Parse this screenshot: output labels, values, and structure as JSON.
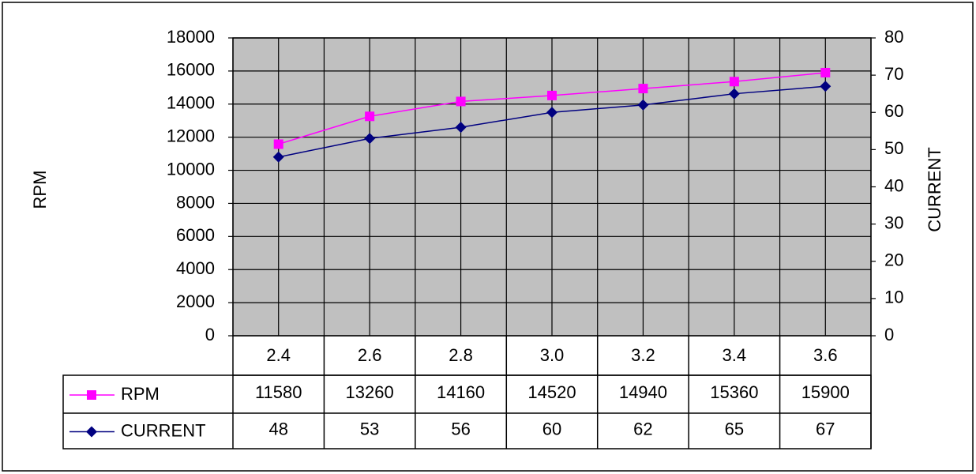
{
  "chart_data": {
    "type": "line",
    "categories": [
      "2.4",
      "2.6",
      "2.8",
      "3.0",
      "3.2",
      "3.4",
      "3.6"
    ],
    "series": [
      {
        "name": "RPM",
        "color": "#ff00ff",
        "marker": "square",
        "values": [
          11580,
          13260,
          14160,
          14520,
          14940,
          15360,
          15900
        ]
      },
      {
        "name": "CURRENT",
        "color": "#000080",
        "marker": "diamond",
        "axis": "y2",
        "values": [
          48,
          53,
          56,
          60,
          62,
          65,
          67
        ]
      }
    ],
    "ylabel": "RPM",
    "y2label": "CURRENT",
    "ylim": [
      0,
      18000
    ],
    "yticks": [
      0,
      2000,
      4000,
      6000,
      8000,
      10000,
      12000,
      14000,
      16000,
      18000
    ],
    "y2lim": [
      0,
      80
    ],
    "y2ticks": [
      0,
      10,
      20,
      30,
      40,
      50,
      60,
      70,
      80
    ],
    "grid": true,
    "plot_background": "#c0c0c0",
    "data_table": true
  }
}
